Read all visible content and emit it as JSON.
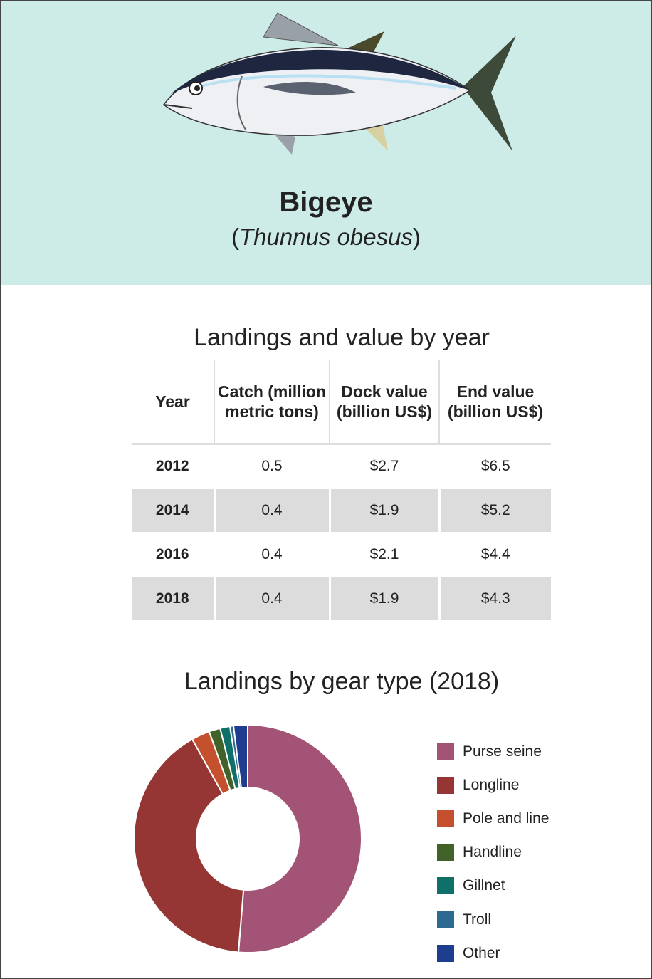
{
  "species": {
    "common_name": "Bigeye",
    "scientific_name": "Thunnus obesus",
    "open_paren": "(",
    "close_paren": ")"
  },
  "table": {
    "title": "Landings and value by year",
    "headers": [
      "Year",
      "Catch (million metric tons)",
      "Dock value (billion US$)",
      "End value (billion US$)"
    ],
    "rows": [
      [
        "2012",
        "0.5",
        "$2.7",
        "$6.5"
      ],
      [
        "2014",
        "0.4",
        "$1.9",
        "$5.2"
      ],
      [
        "2016",
        "0.4",
        "$2.1",
        "$4.4"
      ],
      [
        "2018",
        "0.4",
        "$1.9",
        "$4.3"
      ]
    ]
  },
  "chart_data": {
    "type": "pie",
    "title": "Landings by gear type (2018)",
    "categories": [
      "Purse seine",
      "Longline",
      "Pole and line",
      "Handline",
      "Gillnet",
      "Troll",
      "Other"
    ],
    "values": [
      51.3,
      40.6,
      2.6,
      1.6,
      1.4,
      0.5,
      2.0
    ],
    "unit": "percent (estimated)",
    "colors": [
      "#a35476",
      "#963634",
      "#c4502e",
      "#416228",
      "#0e7068",
      "#2e6a90",
      "#1e3d8f"
    ],
    "donut": true,
    "legend": "right"
  }
}
